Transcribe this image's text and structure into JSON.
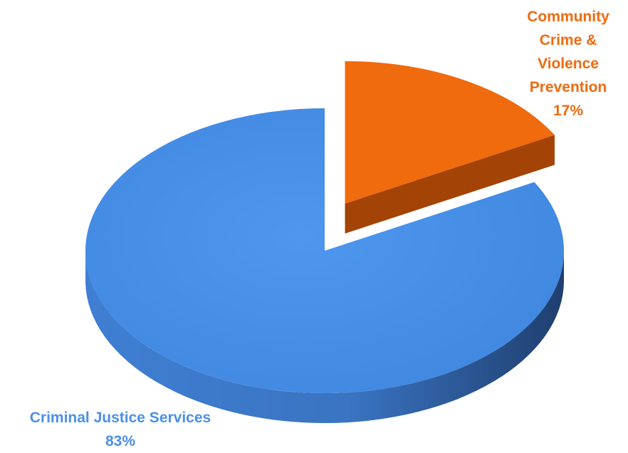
{
  "chart_data": {
    "type": "pie",
    "title": "",
    "slices": [
      {
        "label": "Criminal Justice Services",
        "value": 83,
        "value_label": "83%",
        "color": "#4A90E8",
        "exploded": false
      },
      {
        "label": "Community Crime & Violence Prevention",
        "label_lines": [
          "Community",
          "Crime &",
          "Violence",
          "Prevention"
        ],
        "value": 17,
        "value_label": "17%",
        "color": "#F06A0E",
        "exploded": true
      }
    ],
    "style": "3d",
    "legend": "none",
    "data_labels": "outside"
  }
}
